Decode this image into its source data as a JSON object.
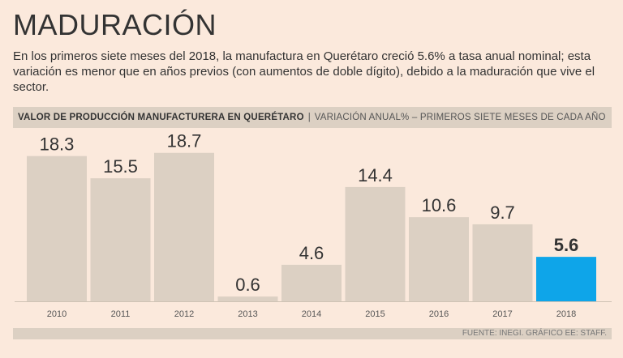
{
  "header": {
    "title": "MADURACIÓN",
    "subtitle": "En los primeros siete meses del 2018, la manufactura en Querétaro creció 5.6% a tasa anual nominal; esta variación es menor que en años previos (con aumentos de doble dígito), debido a la maduración que vive el sector."
  },
  "band": {
    "bold": "VALOR DE PRODUCCIÓN MANUFACTURERA EN QUERÉTARO",
    "separator": "|",
    "light": "VARIACIÓN ANUAL% – PRIMEROS SIETE MESES DE CADA AÑO"
  },
  "footer": {
    "source": "FUENTE: INEGI. GRÁFICO EE: STAFF."
  },
  "colors": {
    "bar": "#dcd0c3",
    "highlight": "#0ea5e9",
    "text": "#3a3a3a"
  },
  "chart_data": {
    "type": "bar",
    "title": "VALOR DE PRODUCCIÓN MANUFACTURERA EN QUERÉTARO",
    "subtitle": "VARIACIÓN ANUAL% – PRIMEROS SIETE MESES DE CADA AÑO",
    "categories": [
      "2010",
      "2011",
      "2012",
      "2013",
      "2014",
      "2015",
      "2016",
      "2017",
      "2018"
    ],
    "values": [
      18.3,
      15.5,
      18.7,
      0.6,
      4.6,
      14.4,
      10.6,
      9.7,
      5.6
    ],
    "value_labels": [
      "18.3",
      "15.5",
      "18.7",
      "0.6",
      "4.6",
      "14.4",
      "10.6",
      "9.7",
      "5.6"
    ],
    "highlight_index": 8,
    "xlabel": "",
    "ylabel": "",
    "ylim": [
      0,
      20
    ],
    "grid": false,
    "legend": "none"
  }
}
